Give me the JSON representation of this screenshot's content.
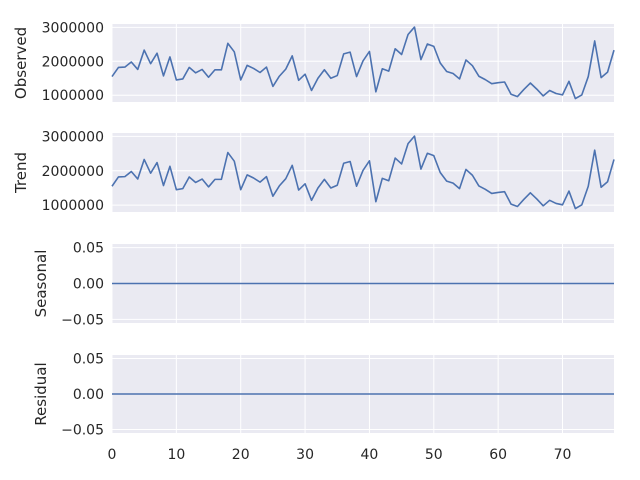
{
  "chart_data": [
    {
      "type": "line",
      "ylabel": "Observed",
      "ylim": [
        800000,
        3100000
      ],
      "yticks": [
        1000000,
        2000000,
        3000000
      ],
      "ytick_labels": [
        "1000000",
        "2000000",
        "3000000"
      ],
      "show_xticks": false,
      "grid": true,
      "series": [
        {
          "x": [
            0,
            1,
            2,
            3,
            4,
            5,
            6,
            7,
            8,
            9,
            10,
            11,
            12,
            13,
            14,
            15,
            16,
            17,
            18,
            19,
            20,
            21,
            22,
            23,
            24,
            25,
            26,
            27,
            28,
            29,
            30,
            31,
            32,
            33,
            34,
            35,
            36,
            37,
            38,
            39,
            40,
            41,
            42,
            43,
            44,
            45,
            46,
            47,
            48,
            49,
            50,
            51,
            52,
            53,
            54,
            55,
            56,
            57,
            58,
            59,
            60,
            61,
            62,
            63,
            64,
            65,
            66,
            67,
            68,
            69,
            70,
            71,
            72,
            73,
            74,
            75,
            76,
            77,
            78
          ],
          "values": [
            1550000,
            1820000,
            1830000,
            1980000,
            1760000,
            2330000,
            1930000,
            2240000,
            1570000,
            2130000,
            1450000,
            1480000,
            1820000,
            1660000,
            1760000,
            1530000,
            1750000,
            1750000,
            2530000,
            2280000,
            1450000,
            1880000,
            1790000,
            1670000,
            1830000,
            1260000,
            1560000,
            1770000,
            2160000,
            1440000,
            1620000,
            1140000,
            1500000,
            1750000,
            1500000,
            1580000,
            2220000,
            2270000,
            1550000,
            2010000,
            2290000,
            1100000,
            1780000,
            1710000,
            2370000,
            2200000,
            2790000,
            3010000,
            2050000,
            2510000,
            2440000,
            1950000,
            1700000,
            1640000,
            1480000,
            2040000,
            1870000,
            1560000,
            1460000,
            1340000,
            1370000,
            1390000,
            1030000,
            960000,
            1170000,
            1360000,
            1180000,
            980000,
            1140000,
            1050000,
            1010000,
            1410000,
            900000,
            1010000,
            1550000,
            2600000,
            1520000,
            1680000,
            2330000
          ]
        }
      ]
    },
    {
      "type": "line",
      "ylabel": "Trend",
      "ylim": [
        800000,
        3100000
      ],
      "yticks": [
        1000000,
        2000000,
        3000000
      ],
      "ytick_labels": [
        "1000000",
        "2000000",
        "3000000"
      ],
      "show_xticks": false,
      "grid": true,
      "series": [
        {
          "x": [
            0,
            1,
            2,
            3,
            4,
            5,
            6,
            7,
            8,
            9,
            10,
            11,
            12,
            13,
            14,
            15,
            16,
            17,
            18,
            19,
            20,
            21,
            22,
            23,
            24,
            25,
            26,
            27,
            28,
            29,
            30,
            31,
            32,
            33,
            34,
            35,
            36,
            37,
            38,
            39,
            40,
            41,
            42,
            43,
            44,
            45,
            46,
            47,
            48,
            49,
            50,
            51,
            52,
            53,
            54,
            55,
            56,
            57,
            58,
            59,
            60,
            61,
            62,
            63,
            64,
            65,
            66,
            67,
            68,
            69,
            70,
            71,
            72,
            73,
            74,
            75,
            76,
            77,
            78
          ],
          "values": [
            1550000,
            1820000,
            1830000,
            1980000,
            1760000,
            2330000,
            1930000,
            2240000,
            1570000,
            2130000,
            1450000,
            1480000,
            1820000,
            1660000,
            1760000,
            1530000,
            1750000,
            1750000,
            2530000,
            2280000,
            1450000,
            1880000,
            1790000,
            1670000,
            1830000,
            1260000,
            1560000,
            1770000,
            2160000,
            1440000,
            1620000,
            1140000,
            1500000,
            1750000,
            1500000,
            1580000,
            2220000,
            2270000,
            1550000,
            2010000,
            2290000,
            1100000,
            1780000,
            1710000,
            2370000,
            2200000,
            2790000,
            3010000,
            2050000,
            2510000,
            2440000,
            1950000,
            1700000,
            1640000,
            1480000,
            2040000,
            1870000,
            1560000,
            1460000,
            1340000,
            1370000,
            1390000,
            1030000,
            960000,
            1170000,
            1360000,
            1180000,
            980000,
            1140000,
            1050000,
            1010000,
            1410000,
            900000,
            1010000,
            1550000,
            2600000,
            1520000,
            1680000,
            2330000
          ]
        }
      ]
    },
    {
      "type": "line",
      "ylabel": "Seasonal",
      "ylim": [
        -0.055,
        0.055
      ],
      "yticks": [
        -0.05,
        0,
        0.05
      ],
      "ytick_labels": [
        "−0.05",
        "0.00",
        "0.05"
      ],
      "show_xticks": false,
      "grid": true,
      "series": [
        {
          "x": [
            0,
            78
          ],
          "values": [
            0,
            0
          ]
        }
      ]
    },
    {
      "type": "line",
      "ylabel": "Residual",
      "ylim": [
        -0.055,
        0.055
      ],
      "yticks": [
        -0.05,
        0,
        0.05
      ],
      "ytick_labels": [
        "−0.05",
        "0.00",
        "0.05"
      ],
      "show_xticks": true,
      "grid": true,
      "series": [
        {
          "x": [
            0,
            78
          ],
          "values": [
            0,
            0
          ]
        }
      ]
    }
  ],
  "x_axis": {
    "xlim": [
      0,
      78
    ],
    "xticks": [
      0,
      10,
      20,
      30,
      40,
      50,
      60,
      70
    ],
    "xtick_labels": [
      "0",
      "10",
      "20",
      "30",
      "40",
      "50",
      "60",
      "70"
    ]
  },
  "colors": {
    "line": "#4c72b0",
    "panel_background": "#eaeaf2",
    "grid": "#ffffff"
  }
}
